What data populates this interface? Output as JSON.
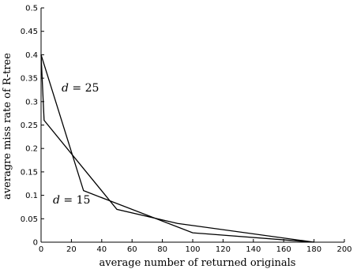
{
  "chart_data": {
    "type": "line",
    "title": "",
    "xlabel": "average number of returned originals",
    "ylabel": "averagre miss rate of R-tree",
    "xlim": [
      0,
      200
    ],
    "ylim": [
      0,
      0.5
    ],
    "xticks": [
      "0",
      "20",
      "40",
      "60",
      "80",
      "100",
      "120",
      "140",
      "160",
      "180",
      "200"
    ],
    "yticks": [
      "0",
      "0.05",
      "0.1",
      "0.15",
      "0.2",
      "0.25",
      "0.3",
      "0.35",
      "0.4",
      "0.45",
      "0.5"
    ],
    "grid": false,
    "series": [
      {
        "name": "d = 25",
        "x": [
          0,
          2,
          50,
          90,
          180
        ],
        "y": [
          0.4,
          0.26,
          0.07,
          0.04,
          0.0
        ]
      },
      {
        "name": "d = 15",
        "x": [
          0,
          28,
          100,
          180
        ],
        "y": [
          0.4,
          0.11,
          0.02,
          0.0
        ]
      }
    ],
    "annotations": [
      {
        "var": "d",
        "rest": " = 25"
      },
      {
        "var": "d",
        "rest": " = 15"
      }
    ]
  }
}
